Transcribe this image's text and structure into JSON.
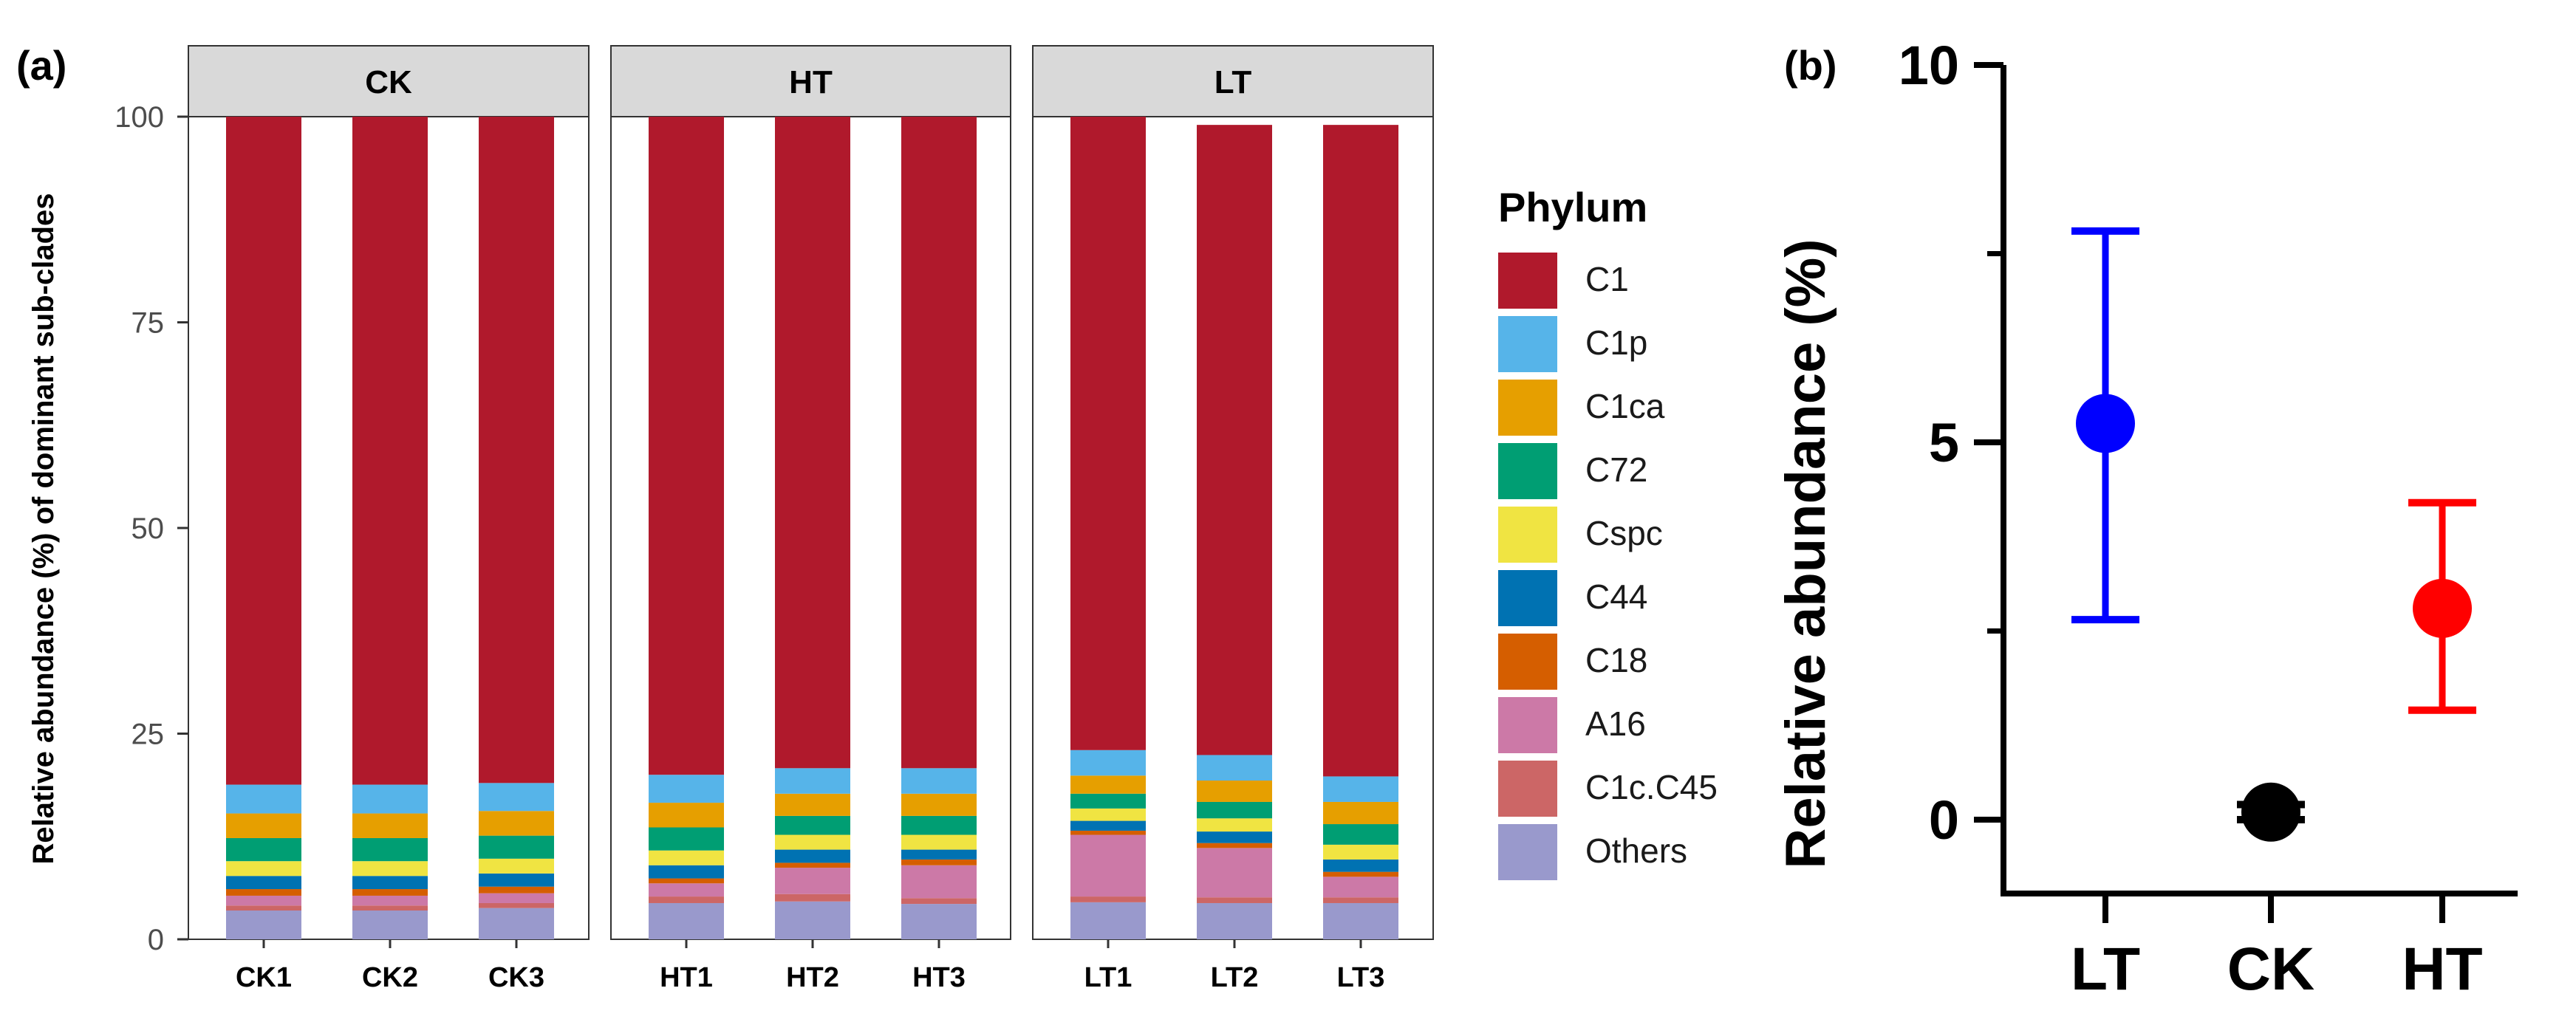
{
  "panel_a": {
    "label": "(a)",
    "ylabel": "Relative abundance (%) of dominant sub-clades",
    "legend_title": "Phylum"
  },
  "panel_b": {
    "label": "(b)",
    "ylabel": "Relative abundance (%)"
  },
  "colors": {
    "C1": "#B0192C",
    "C1p": "#56B4E9",
    "C1ca": "#E69F00",
    "C72": "#009E73",
    "Cspc": "#F0E442",
    "C44": "#0072B2",
    "C18": "#D55E00",
    "A16": "#CC79A7",
    "C1c.C45": "#CC6666",
    "Others": "#9999CC",
    "LT": "#0000FF",
    "CK": "#000000",
    "HT": "#FF0000"
  },
  "chart_data": [
    {
      "type": "bar",
      "stacked": true,
      "title": "",
      "xlabel": "",
      "ylabel": "Relative abundance (%) of dominant sub-clades",
      "ylim": [
        0,
        100
      ],
      "yticks": [
        0,
        25,
        50,
        75,
        100
      ],
      "facets": [
        {
          "name": "CK",
          "categories": [
            "CK1",
            "CK2",
            "CK3"
          ]
        },
        {
          "name": "HT",
          "categories": [
            "HT1",
            "HT2",
            "HT3"
          ]
        },
        {
          "name": "LT",
          "categories": [
            "LT1",
            "LT2",
            "LT3"
          ]
        }
      ],
      "categories": [
        "CK1",
        "CK2",
        "CK3",
        "HT1",
        "HT2",
        "HT3",
        "LT1",
        "LT2",
        "LT3"
      ],
      "stack_order": [
        "Others",
        "C1c.C45",
        "A16",
        "C18",
        "C44",
        "Cspc",
        "C72",
        "C1ca",
        "C1p",
        "C1"
      ],
      "series": [
        {
          "name": "C1",
          "values": [
            81.2,
            81.2,
            81.0,
            80.0,
            79.2,
            79.2,
            77.0,
            76.6,
            79.2
          ]
        },
        {
          "name": "C1p",
          "values": [
            3.5,
            3.5,
            3.4,
            3.4,
            3.1,
            3.1,
            3.1,
            3.1,
            3.1
          ]
        },
        {
          "name": "C1ca",
          "values": [
            3.0,
            3.0,
            3.0,
            3.0,
            2.7,
            2.7,
            2.2,
            2.6,
            2.7
          ]
        },
        {
          "name": "C72",
          "values": [
            2.8,
            2.8,
            2.8,
            2.8,
            2.3,
            2.3,
            1.8,
            2.0,
            2.5
          ]
        },
        {
          "name": "Cspc",
          "values": [
            1.8,
            1.8,
            1.8,
            1.8,
            1.8,
            1.8,
            1.5,
            1.6,
            1.8
          ]
        },
        {
          "name": "C44",
          "values": [
            1.6,
            1.6,
            1.6,
            1.6,
            1.6,
            1.2,
            1.2,
            1.4,
            1.5
          ]
        },
        {
          "name": "C18",
          "values": [
            0.8,
            0.8,
            0.8,
            0.6,
            0.6,
            0.7,
            0.5,
            0.6,
            0.6
          ]
        },
        {
          "name": "A16",
          "values": [
            1.2,
            1.2,
            1.2,
            1.6,
            3.2,
            4.0,
            7.5,
            6.0,
            2.5
          ]
        },
        {
          "name": "C1c.C45",
          "values": [
            0.6,
            0.6,
            0.6,
            0.8,
            0.9,
            0.7,
            0.7,
            0.7,
            0.7
          ]
        },
        {
          "name": "Others",
          "values": [
            3.5,
            3.5,
            3.8,
            4.4,
            4.6,
            4.3,
            4.5,
            4.4,
            4.4
          ]
        }
      ],
      "legend": [
        "C1",
        "C1p",
        "C1ca",
        "C72",
        "Cspc",
        "C44",
        "C18",
        "A16",
        "C1c.C45",
        "Others"
      ],
      "legend_title": "Phylum",
      "legend_position": "right"
    },
    {
      "type": "scatter",
      "title": "",
      "xlabel": "",
      "ylabel": "Relative abundance (%)",
      "ylim": [
        -1,
        10
      ],
      "yticks": [
        0,
        5,
        10
      ],
      "categories": [
        "LT",
        "CK",
        "HT"
      ],
      "points": [
        {
          "group": "LT",
          "mean": 5.25,
          "lower": 2.65,
          "upper": 7.8
        },
        {
          "group": "CK",
          "mean": 0.1,
          "lower": 0.0,
          "upper": 0.2
        },
        {
          "group": "HT",
          "mean": 2.8,
          "lower": 1.45,
          "upper": 4.2
        }
      ],
      "grid": false
    }
  ]
}
